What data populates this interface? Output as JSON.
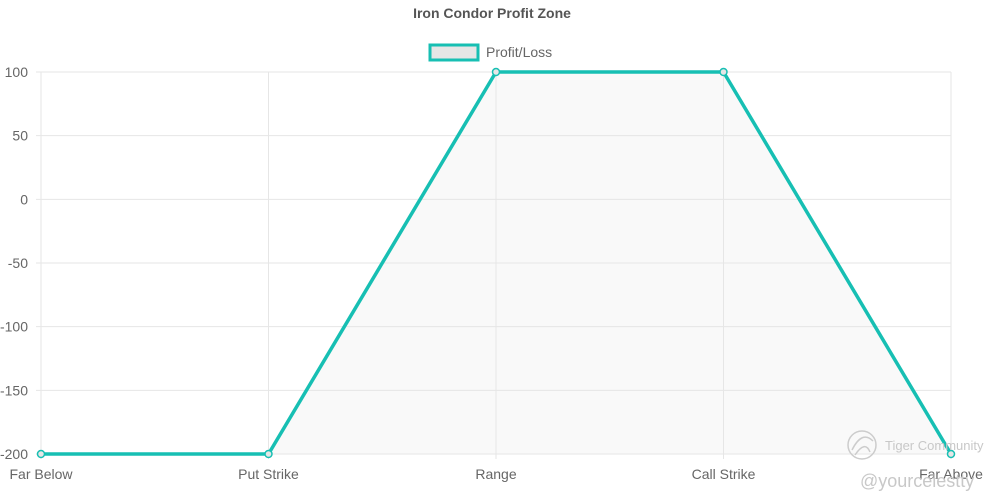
{
  "chart_data": {
    "type": "line",
    "title": "Iron Condor Profit Zone",
    "categories": [
      "Far Below",
      "Put Strike",
      "Range",
      "Call Strike",
      "Far Above"
    ],
    "series": [
      {
        "name": "Profit/Loss",
        "values": [
          -200,
          -200,
          100,
          100,
          -200
        ],
        "color": "#17bfb3",
        "fill_color": "#e6e6e6"
      }
    ],
    "ylim": [
      -200,
      100
    ],
    "yticks": [
      100,
      50,
      0,
      -50,
      -100,
      -150,
      -200
    ],
    "grid": true,
    "legend": "top-center"
  },
  "watermark": {
    "brand": "Tiger Community",
    "handle": "@yourcelestty"
  }
}
